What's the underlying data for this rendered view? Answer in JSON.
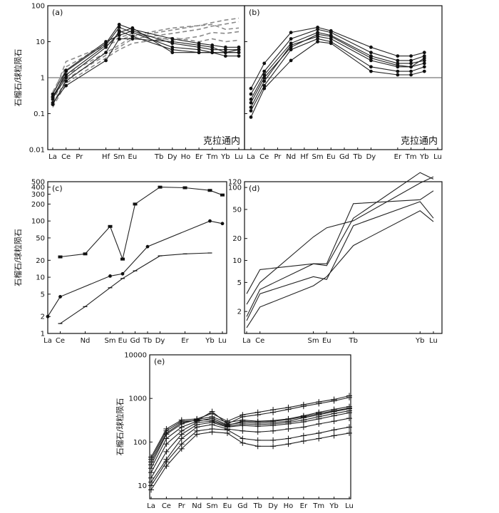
{
  "figure_title": "",
  "chart_data": [
    {
      "id": "a",
      "type": "line",
      "panel_label": "(a)",
      "ylabel": "石榴石/球粒陨石",
      "annotation": "克拉通内",
      "yscale": "log",
      "ylim": [
        0.01,
        100
      ],
      "yticks": [
        0.01,
        0.1,
        1,
        10,
        100
      ],
      "ytick_labels": [
        "0.01",
        "0.1",
        "1",
        "10",
        "100"
      ],
      "reference_line": 1,
      "categories": [
        "La",
        "Ce",
        "Pr",
        "",
        "Hf",
        "Sm",
        "Eu",
        "",
        "Tb",
        "Dy",
        "Ho",
        "Er",
        "Tm",
        "Yb",
        "Lu"
      ],
      "series": [
        {
          "name": "dashed-1",
          "style": "dashed",
          "marker": "none",
          "values": [
            0.22,
            1.2,
            null,
            null,
            null,
            8,
            14,
            null,
            null,
            21,
            null,
            28,
            34,
            40,
            45
          ]
        },
        {
          "name": "dashed-2",
          "style": "dashed",
          "marker": "none",
          "values": [
            0.18,
            0.9,
            null,
            null,
            null,
            7,
            12,
            null,
            null,
            17,
            null,
            22,
            27,
            31,
            36
          ]
        },
        {
          "name": "dashed-3",
          "style": "dashed",
          "marker": "none",
          "values": [
            0.3,
            2.8,
            null,
            null,
            null,
            11,
            15,
            null,
            null,
            24,
            null,
            28,
            30,
            22,
            24
          ]
        },
        {
          "name": "dashed-4",
          "style": "dashed",
          "marker": "none",
          "values": [
            0.4,
            2.0,
            null,
            null,
            null,
            13,
            17,
            null,
            null,
            11,
            null,
            14,
            18,
            17,
            19
          ]
        },
        {
          "name": "dashed-5",
          "style": "dashed",
          "marker": "none",
          "values": [
            0.15,
            0.7,
            null,
            null,
            null,
            6,
            9,
            null,
            null,
            13,
            null,
            10,
            12,
            10,
            11
          ]
        },
        {
          "name": "solid-1",
          "style": "solid",
          "marker": "dot",
          "values": [
            0.25,
            1.5,
            null,
            null,
            9,
            30,
            22,
            null,
            null,
            12,
            null,
            9,
            8,
            7,
            7
          ]
        },
        {
          "name": "solid-2",
          "style": "solid",
          "marker": "dot",
          "values": [
            0.3,
            1.2,
            null,
            null,
            8,
            25,
            18,
            null,
            null,
            7,
            null,
            6,
            5,
            5,
            5
          ]
        },
        {
          "name": "solid-3",
          "style": "solid",
          "marker": "dot",
          "values": [
            0.18,
            0.8,
            null,
            null,
            5,
            20,
            14,
            null,
            null,
            6,
            null,
            5,
            5,
            4,
            4
          ]
        },
        {
          "name": "solid-4",
          "style": "solid",
          "marker": "dot",
          "values": [
            0.35,
            1.6,
            null,
            null,
            10,
            15,
            20,
            null,
            null,
            9,
            null,
            7,
            6,
            6,
            6
          ]
        },
        {
          "name": "solid-5",
          "style": "solid",
          "marker": "dot",
          "values": [
            0.2,
            0.6,
            null,
            null,
            3,
            12,
            12,
            null,
            null,
            10,
            null,
            8,
            7,
            5,
            6
          ]
        },
        {
          "name": "solid-6",
          "style": "solid",
          "marker": "dot",
          "values": [
            0.28,
            1.0,
            null,
            null,
            7,
            18,
            24,
            null,
            null,
            5,
            null,
            5,
            5,
            5,
            5
          ]
        }
      ]
    },
    {
      "id": "b",
      "type": "line",
      "panel_label": "(b)",
      "annotation": "克拉通内",
      "yscale": "log",
      "ylim": [
        0.01,
        100
      ],
      "reference_line": 1,
      "categories": [
        "La",
        "Ce",
        "Pr",
        "Nd",
        "Hf",
        "Sm",
        "Eu",
        "Gd",
        "Tb",
        "Dy",
        "",
        "Er",
        "Tm",
        "Yb",
        "Lu"
      ],
      "series": [
        {
          "name": "b-1",
          "style": "solid",
          "marker": "dot",
          "values": [
            0.5,
            2.5,
            null,
            18,
            null,
            25,
            20,
            null,
            null,
            7,
            null,
            4,
            4,
            5,
            null
          ]
        },
        {
          "name": "b-2",
          "style": "solid",
          "marker": "dot",
          "values": [
            0.35,
            1.5,
            null,
            12,
            null,
            22,
            18,
            null,
            null,
            5,
            null,
            3,
            3,
            4,
            null
          ]
        },
        {
          "name": "b-3",
          "style": "solid",
          "marker": "dot",
          "values": [
            0.25,
            1.2,
            null,
            9,
            null,
            18,
            15,
            null,
            null,
            4,
            null,
            2.5,
            2.5,
            3,
            null
          ]
        },
        {
          "name": "b-4",
          "style": "solid",
          "marker": "dot",
          "values": [
            0.15,
            0.8,
            null,
            8,
            null,
            14,
            12,
            null,
            null,
            3,
            null,
            2,
            2,
            2.5,
            null
          ]
        },
        {
          "name": "b-5",
          "style": "solid",
          "marker": "dot",
          "values": [
            0.12,
            0.6,
            null,
            6,
            null,
            12,
            10,
            null,
            null,
            2,
            null,
            1.5,
            1.5,
            2,
            null
          ]
        },
        {
          "name": "b-6",
          "style": "solid",
          "marker": "dot",
          "values": [
            0.08,
            0.5,
            null,
            3,
            null,
            10,
            9,
            null,
            null,
            1.5,
            null,
            1.2,
            1.2,
            1.5,
            null
          ]
        },
        {
          "name": "b-7",
          "style": "solid",
          "marker": "dot",
          "values": [
            0.2,
            1.0,
            null,
            7,
            null,
            16,
            14,
            null,
            null,
            3.5,
            null,
            2.2,
            2.0,
            3.5,
            null
          ]
        }
      ]
    },
    {
      "id": "c",
      "type": "line",
      "panel_label": "(c)",
      "ylabel": "石榴石/球粒陨石",
      "yscale": "log",
      "ylim": [
        1,
        500
      ],
      "yticks": [
        1,
        2,
        5,
        10,
        20,
        50,
        100,
        200,
        300,
        400,
        500
      ],
      "ytick_labels": [
        "1",
        "2",
        "5",
        "10",
        "20",
        "50",
        "100",
        "200",
        "300",
        "400",
        "500"
      ],
      "categories": [
        "La",
        "Ce",
        "",
        "Nd",
        "",
        "Sm",
        "Eu",
        "Gd",
        "Tb",
        "Dy",
        "",
        "Er",
        "",
        "Yb",
        "Lu"
      ],
      "series": [
        {
          "name": "c-upper",
          "style": "solid",
          "marker": "square",
          "values": [
            null,
            23,
            null,
            26,
            null,
            80,
            21,
            200,
            null,
            400,
            null,
            390,
            null,
            350,
            290
          ]
        },
        {
          "name": "c-middle",
          "style": "solid",
          "marker": "dot",
          "values": [
            2,
            4.5,
            null,
            null,
            null,
            10.5,
            11.5,
            null,
            35,
            null,
            null,
            null,
            null,
            100,
            90
          ]
        },
        {
          "name": "c-lower",
          "style": "solid",
          "marker": "tick",
          "values": [
            null,
            1.5,
            null,
            3,
            null,
            6.5,
            9.5,
            13,
            null,
            24,
            null,
            26,
            null,
            27,
            null
          ]
        }
      ]
    },
    {
      "id": "d",
      "type": "line",
      "panel_label": "(d)",
      "yscale": "log",
      "ylim": [
        1,
        120
      ],
      "yticks": [
        2,
        5,
        10,
        20,
        50,
        100,
        120
      ],
      "ytick_labels": [
        "2",
        "5",
        "10",
        "20",
        "50",
        "100",
        "120"
      ],
      "categories": [
        "La",
        "Ce",
        "",
        "",
        "",
        "Sm",
        "Eu",
        "",
        "Tb",
        "",
        "",
        "",
        "",
        "Yb",
        "Lu"
      ],
      "series": [
        {
          "name": "d-1",
          "style": "solid",
          "marker": "none",
          "values": [
            3.5,
            7.5,
            null,
            null,
            null,
            9,
            9,
            null,
            60,
            null,
            null,
            null,
            null,
            68,
            90
          ]
        },
        {
          "name": "d-2",
          "style": "solid",
          "marker": "none",
          "values": [
            2.5,
            5,
            null,
            null,
            null,
            21,
            28,
            null,
            35,
            null,
            null,
            null,
            null,
            115,
            140
          ]
        },
        {
          "name": "d-3",
          "style": "solid",
          "marker": "none",
          "values": [
            1.7,
            4,
            null,
            null,
            null,
            9,
            8.5,
            null,
            38,
            null,
            null,
            null,
            null,
            160,
            130
          ]
        },
        {
          "name": "d-4",
          "style": "solid",
          "marker": "none",
          "values": [
            1.5,
            3.5,
            null,
            null,
            null,
            6,
            5.5,
            null,
            30,
            null,
            null,
            null,
            null,
            64,
            38
          ]
        },
        {
          "name": "d-5",
          "style": "solid",
          "marker": "none",
          "values": [
            1.2,
            2.3,
            null,
            null,
            null,
            4.5,
            6,
            null,
            16,
            null,
            null,
            null,
            null,
            48,
            34
          ]
        }
      ]
    },
    {
      "id": "e",
      "type": "line",
      "panel_label": "(e)",
      "ylabel": "石榴石/球粒陨石",
      "yscale": "log",
      "ylim": [
        5,
        10000
      ],
      "yticks": [
        10,
        100,
        1000,
        10000
      ],
      "ytick_labels": [
        "10",
        "100",
        "1000",
        "10000"
      ],
      "categories": [
        "La",
        "Ce",
        "Pr",
        "Nd",
        "Sm",
        "Eu",
        "Gd",
        "Tb",
        "Dy",
        "Ho",
        "Er",
        "Tm",
        "Yb",
        "Lu"
      ],
      "series": [
        {
          "name": "e-1",
          "style": "solid",
          "marker": "plus",
          "values": [
            45,
            200,
            320,
            340,
            450,
            300,
            420,
            480,
            550,
            620,
            720,
            830,
            950,
            1150
          ]
        },
        {
          "name": "e-2",
          "style": "solid",
          "marker": "plus",
          "values": [
            40,
            180,
            300,
            310,
            500,
            260,
            380,
            420,
            480,
            560,
            660,
            760,
            880,
            1050
          ]
        },
        {
          "name": "e-3",
          "style": "solid",
          "marker": "plus",
          "values": [
            30,
            150,
            260,
            330,
            380,
            280,
            320,
            300,
            310,
            340,
            400,
            480,
            560,
            650
          ]
        },
        {
          "name": "e-4",
          "style": "solid",
          "marker": "plus",
          "values": [
            25,
            120,
            220,
            300,
            350,
            250,
            280,
            270,
            280,
            300,
            360,
            420,
            500,
            580
          ]
        },
        {
          "name": "e-5",
          "style": "solid",
          "marker": "plus",
          "values": [
            20,
            90,
            180,
            280,
            300,
            230,
            260,
            250,
            260,
            280,
            320,
            380,
            450,
            520
          ]
        },
        {
          "name": "e-6",
          "style": "solid",
          "marker": "plus",
          "values": [
            15,
            60,
            150,
            250,
            280,
            220,
            240,
            230,
            240,
            260,
            290,
            340,
            400,
            470
          ]
        },
        {
          "name": "e-7",
          "style": "solid",
          "marker": "plus",
          "values": [
            12,
            40,
            120,
            220,
            250,
            200,
            180,
            170,
            180,
            200,
            220,
            260,
            300,
            350
          ]
        },
        {
          "name": "e-8",
          "style": "solid",
          "marker": "plus",
          "values": [
            10,
            35,
            90,
            180,
            200,
            190,
            120,
            110,
            110,
            120,
            140,
            160,
            190,
            220
          ]
        },
        {
          "name": "e-9",
          "style": "solid",
          "marker": "plus",
          "values": [
            8,
            28,
            70,
            150,
            170,
            160,
            95,
            80,
            80,
            90,
            105,
            120,
            140,
            160
          ]
        },
        {
          "name": "e-10",
          "style": "solid",
          "marker": "plus",
          "values": [
            35,
            160,
            280,
            320,
            320,
            240,
            300,
            290,
            300,
            330,
            380,
            450,
            520,
            600
          ]
        }
      ]
    }
  ]
}
